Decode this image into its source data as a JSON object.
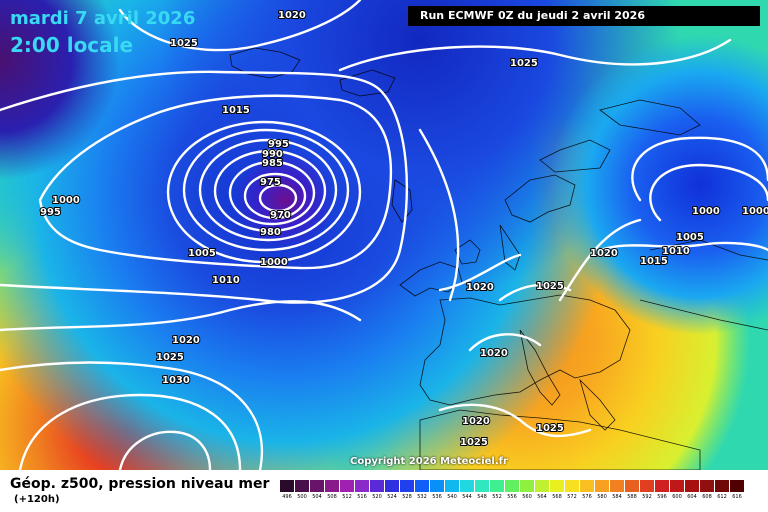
{
  "header": {
    "date": "mardi 7 avril 2026",
    "time": "2:00 locale",
    "run": "Run ECMWF 0Z du jeudi 2 avril 2026"
  },
  "copyright": "Copyright 2026 Meteociel.fr",
  "footer": {
    "title": "Géop. z500, pression niveau mer",
    "subtitle": "(+120h)"
  },
  "legend": {
    "labels": [
      "496",
      "500",
      "504",
      "508",
      "512",
      "516",
      "520",
      "524",
      "528",
      "532",
      "536",
      "540",
      "544",
      "548",
      "552",
      "556",
      "560",
      "564",
      "568",
      "572",
      "576",
      "580",
      "584",
      "588",
      "592",
      "596",
      "600",
      "604",
      "608",
      "612",
      "616"
    ],
    "colors": [
      "#2a0a2a",
      "#4a0f4a",
      "#6a136a",
      "#8a1a8a",
      "#a020b0",
      "#8a2ac8",
      "#5a2ad8",
      "#3030e0",
      "#2040f0",
      "#1060f8",
      "#0890f8",
      "#10b8f0",
      "#20d8e0",
      "#30e8c0",
      "#40f090",
      "#60f060",
      "#90f040",
      "#c0f030",
      "#e8f020",
      "#f8e020",
      "#f8c020",
      "#f8a020",
      "#f08020",
      "#e86020",
      "#e04020",
      "#d02020",
      "#c01818",
      "#a81010",
      "#901010",
      "#700808",
      "#500000"
    ]
  },
  "isobars": {
    "labels": [
      "1020",
      "1025",
      "1015",
      "1000",
      "995",
      "995",
      "990",
      "985",
      "975",
      "970",
      "980",
      "1005",
      "1000",
      "1010",
      "1025",
      "1000",
      "1000",
      "1005",
      "1010",
      "1015",
      "1020",
      "1020",
      "1025",
      "1020",
      "1020",
      "1025",
      "1030",
      "1020",
      "1025",
      "1025"
    ]
  }
}
